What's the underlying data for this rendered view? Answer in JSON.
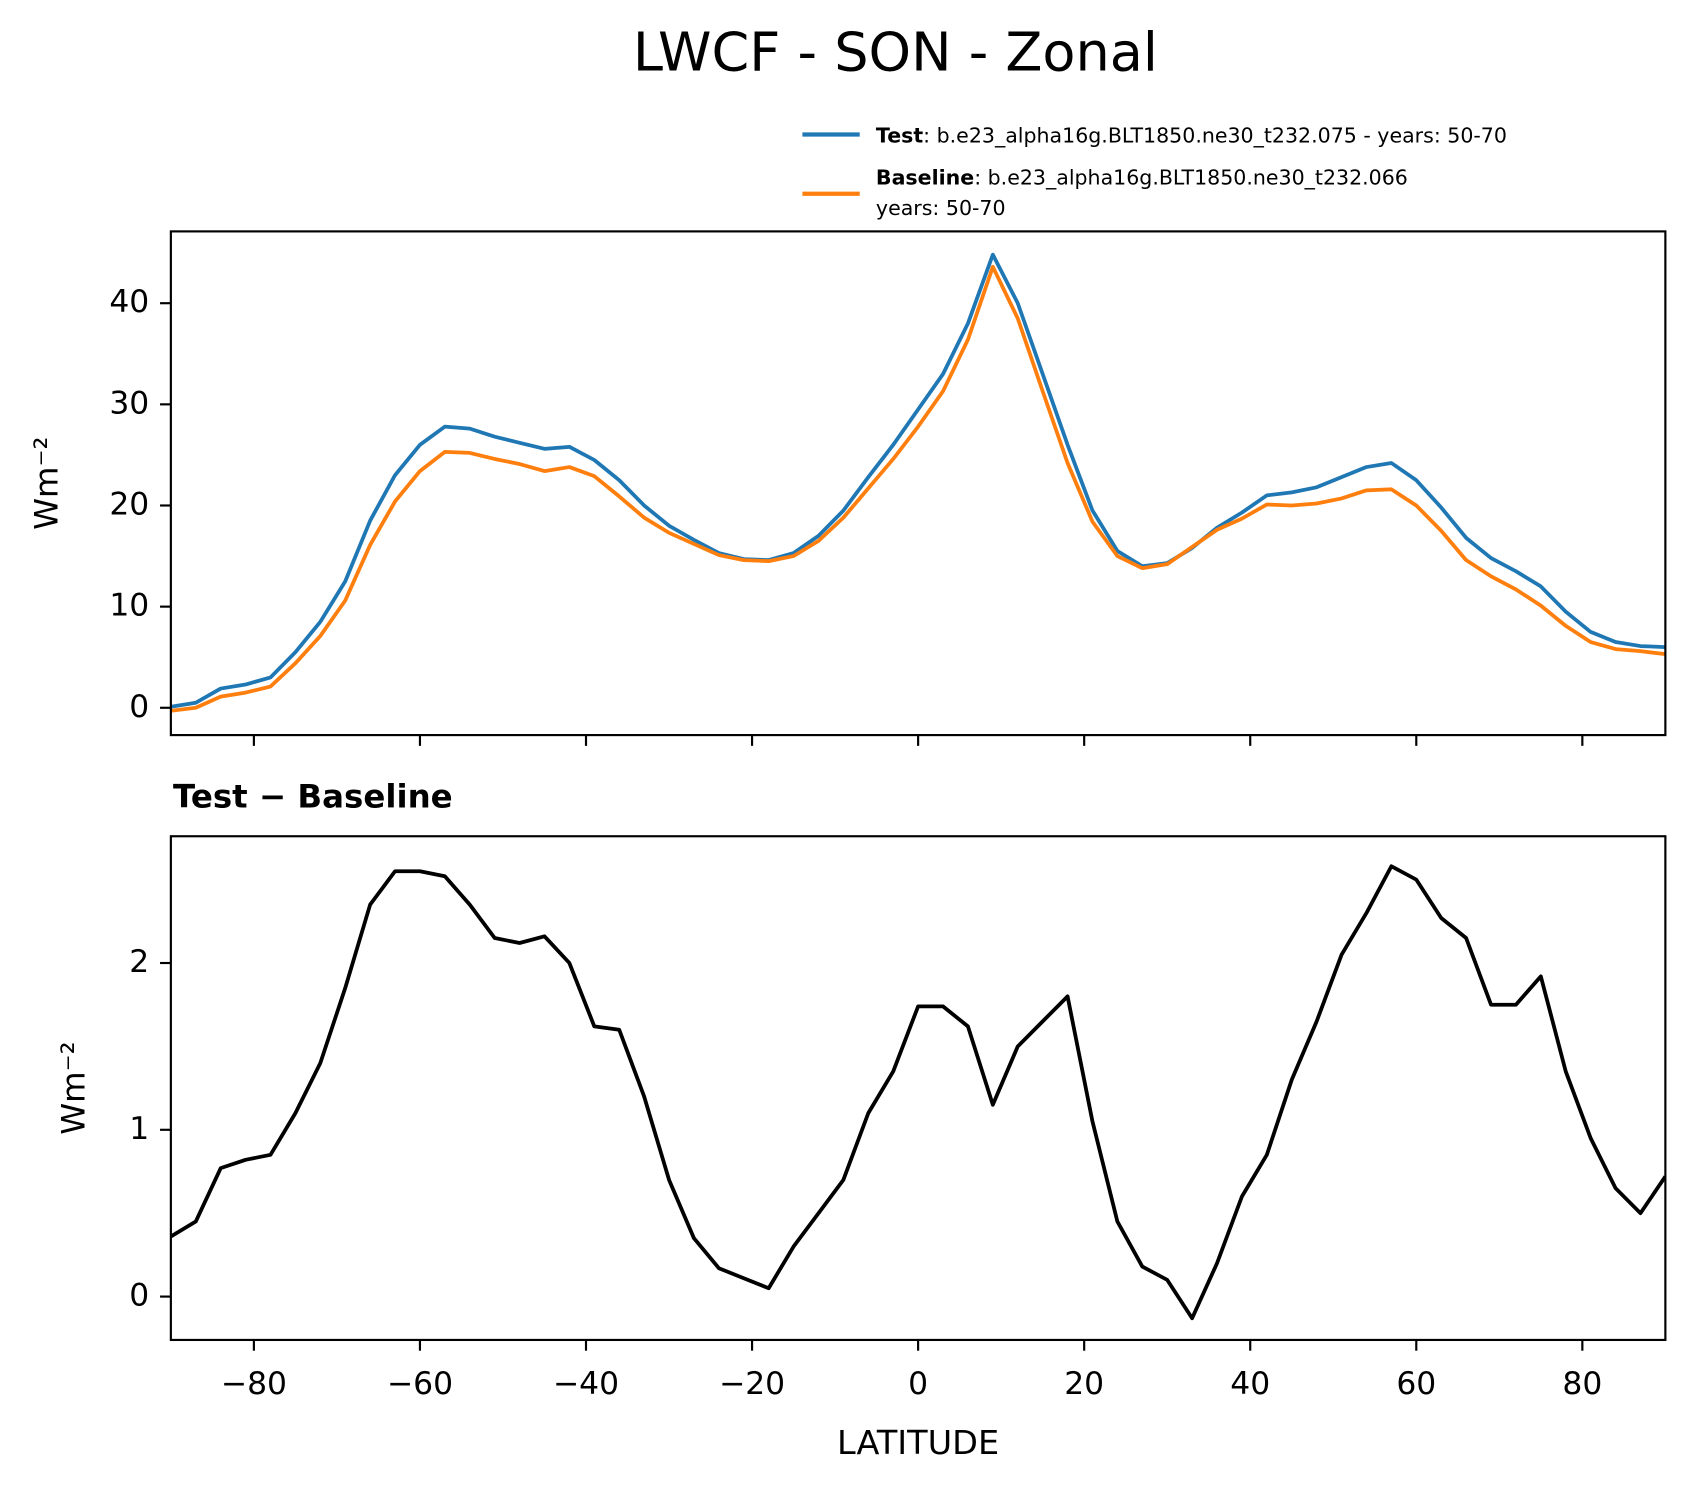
{
  "chart_data": [
    {
      "type": "line",
      "title": "LWCF - SON - Zonal",
      "ylabel": "Wm⁻²",
      "x": [
        -90,
        -87,
        -84,
        -81,
        -78,
        -75,
        -72,
        -69,
        -66,
        -63,
        -60,
        -57,
        -54,
        -51,
        -48,
        -45,
        -42,
        -39,
        -36,
        -33,
        -30,
        -27,
        -24,
        -21,
        -18,
        -15,
        -12,
        -9,
        -6,
        -3,
        0,
        3,
        6,
        9,
        12,
        15,
        18,
        21,
        24,
        27,
        30,
        33,
        36,
        39,
        42,
        45,
        48,
        51,
        54,
        57,
        60,
        63,
        66,
        69,
        72,
        75,
        78,
        81,
        84,
        87,
        90
      ],
      "series": [
        {
          "name": "Test",
          "label": ": b.e23_alpha16g.BLT1850.ne30_t232.075 - years: 50-70",
          "color": "#1f77b4",
          "values": [
            0.1,
            0.5,
            1.9,
            2.3,
            3.0,
            5.5,
            8.5,
            12.5,
            18.5,
            23.0,
            26.0,
            27.8,
            27.6,
            26.8,
            26.2,
            25.6,
            25.8,
            24.5,
            22.5,
            20.0,
            18.0,
            16.6,
            15.3,
            14.7,
            14.6,
            15.3,
            17.0,
            19.5,
            22.8,
            26.0,
            29.5,
            33.0,
            38.0,
            44.8,
            40.0,
            33.0,
            26.0,
            19.5,
            15.5,
            14.0,
            14.3,
            15.8,
            17.8,
            19.3,
            21.0,
            21.3,
            21.8,
            22.8,
            23.8,
            24.2,
            22.5,
            19.8,
            16.8,
            14.8,
            13.5,
            12.0,
            9.5,
            7.5,
            6.5,
            6.1,
            6.0
          ]
        },
        {
          "name": "Baseline",
          "label_lines": [
            ": b.e23_alpha16g.BLT1850.ne30_t232.066",
            "years: 50-70"
          ],
          "color": "#ff7f0e",
          "values": [
            -0.3,
            0.0,
            1.1,
            1.5,
            2.1,
            4.4,
            7.1,
            10.6,
            16.1,
            20.4,
            23.4,
            25.3,
            25.2,
            24.6,
            24.1,
            23.4,
            23.8,
            22.9,
            20.9,
            18.8,
            17.3,
            16.2,
            15.1,
            14.6,
            14.5,
            15.0,
            16.5,
            18.8,
            21.7,
            24.6,
            27.8,
            31.3,
            36.4,
            43.6,
            38.5,
            31.3,
            24.2,
            18.4,
            15.0,
            13.8,
            14.2,
            15.9,
            17.6,
            18.7,
            20.1,
            20.0,
            20.2,
            20.7,
            21.5,
            21.6,
            20.0,
            17.5,
            14.6,
            13.0,
            11.7,
            10.1,
            8.1,
            6.5,
            5.8,
            5.6,
            5.3
          ]
        }
      ],
      "xlim": [
        -90,
        90
      ],
      "xticks": [
        -80,
        -60,
        -40,
        -20,
        0,
        20,
        40,
        60,
        80
      ],
      "ylim": [
        -2.7,
        47.1
      ],
      "yticks": [
        0,
        10,
        20,
        30,
        40
      ]
    },
    {
      "type": "line",
      "title": "Test − Baseline",
      "ylabel": "Wm⁻²",
      "xlabel": "LATITUDE",
      "x": [
        -90,
        -87,
        -84,
        -81,
        -78,
        -75,
        -72,
        -69,
        -66,
        -63,
        -60,
        -57,
        -54,
        -51,
        -48,
        -45,
        -42,
        -39,
        -36,
        -33,
        -30,
        -27,
        -24,
        -21,
        -18,
        -15,
        -12,
        -9,
        -6,
        -3,
        0,
        3,
        6,
        9,
        12,
        15,
        18,
        21,
        24,
        27,
        30,
        33,
        36,
        39,
        42,
        45,
        48,
        51,
        54,
        57,
        60,
        63,
        66,
        69,
        72,
        75,
        78,
        81,
        84,
        87,
        90
      ],
      "series": [
        {
          "color": "#000000",
          "values": [
            0.36,
            0.45,
            0.77,
            0.82,
            0.85,
            1.1,
            1.4,
            1.85,
            2.35,
            2.55,
            2.55,
            2.52,
            2.35,
            2.15,
            2.12,
            2.16,
            2.0,
            1.62,
            1.6,
            1.2,
            0.7,
            0.35,
            0.17,
            0.11,
            0.05,
            0.3,
            0.5,
            0.7,
            1.1,
            1.35,
            1.74,
            1.74,
            1.62,
            1.15,
            1.5,
            1.65,
            1.8,
            1.05,
            0.45,
            0.18,
            0.1,
            -0.13,
            0.2,
            0.6,
            0.85,
            1.3,
            1.65,
            2.05,
            2.3,
            2.58,
            2.5,
            2.27,
            2.15,
            1.75,
            1.75,
            1.92,
            1.35,
            0.95,
            0.65,
            0.5,
            0.72
          ]
        }
      ],
      "xlim": [
        -90,
        90
      ],
      "xticks": [
        {
          "value": -80,
          "label": "−80"
        },
        {
          "value": -60,
          "label": "−60"
        },
        {
          "value": -40,
          "label": "−40"
        },
        {
          "value": -20,
          "label": "−20"
        },
        0,
        20,
        40,
        60,
        80
      ],
      "ylim": [
        -0.26,
        2.76
      ],
      "yticks": [
        0,
        1,
        2
      ]
    }
  ]
}
